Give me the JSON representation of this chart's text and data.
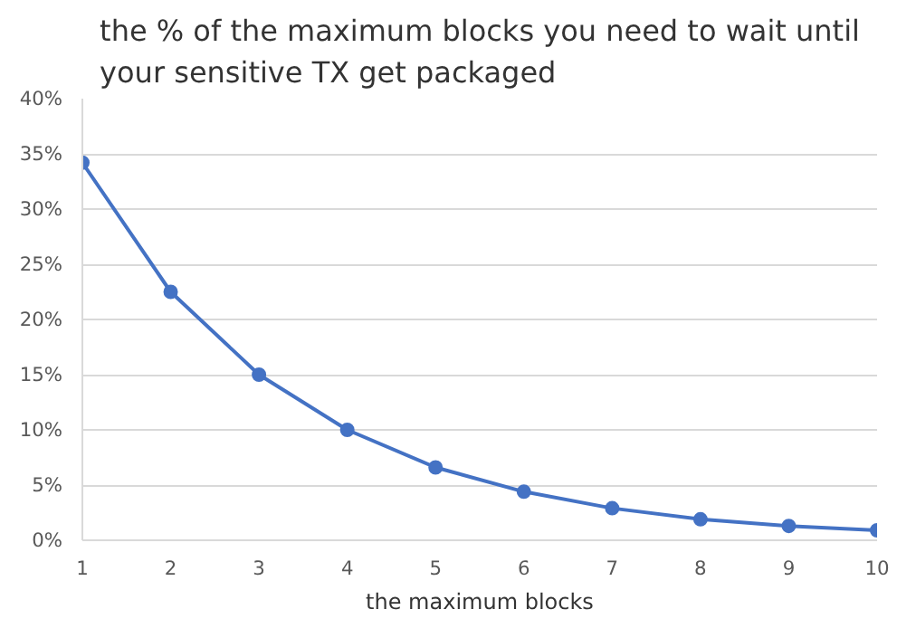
{
  "chart_data": {
    "type": "line",
    "title": "the % of the maximum blocks you need to wait until\nyour sensitive TX get packaged",
    "xlabel": "the maximum blocks",
    "x": [
      1,
      2,
      3,
      4,
      5,
      6,
      7,
      8,
      9,
      10
    ],
    "series": [
      {
        "color": "#4472c4",
        "values": [
          34.2,
          22.5,
          15.0,
          10.0,
          6.6,
          4.4,
          2.9,
          1.9,
          1.3,
          0.9
        ]
      }
    ],
    "xlim": [
      1,
      10
    ],
    "xticks": [
      1,
      2,
      3,
      4,
      5,
      6,
      7,
      8,
      9,
      10
    ],
    "ylim": [
      0,
      40
    ],
    "yticks": [
      {
        "value": 0,
        "label": "0%"
      },
      {
        "value": 5,
        "label": "5%"
      },
      {
        "value": 10,
        "label": "10%"
      },
      {
        "value": 15,
        "label": "15%"
      },
      {
        "value": 20,
        "label": "20%"
      },
      {
        "value": 25,
        "label": "25%"
      },
      {
        "value": 30,
        "label": "30%"
      },
      {
        "value": 35,
        "label": "35%"
      },
      {
        "value": 40,
        "label": "40%"
      }
    ],
    "grid": "y",
    "marker": "circle"
  }
}
